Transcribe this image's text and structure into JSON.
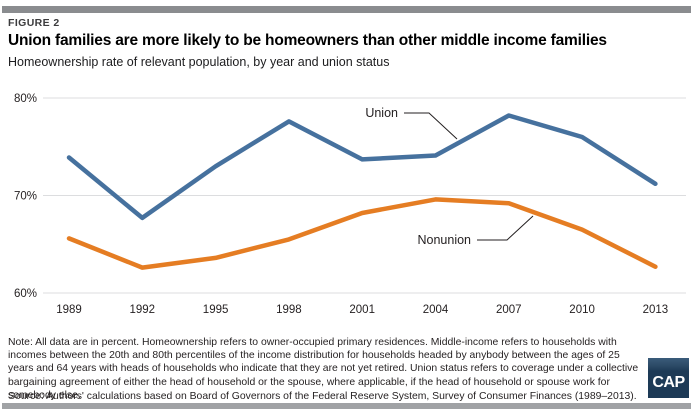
{
  "header": {
    "figure_label": "FIGURE 2",
    "title": "Union families are more likely to be homeowners than other middle income families",
    "subtitle": "Homeownership rate of relevant population, by year and union status"
  },
  "chart_data": {
    "type": "line",
    "categories": [
      "1989",
      "1992",
      "1995",
      "1998",
      "2001",
      "2004",
      "2007",
      "2010",
      "2013"
    ],
    "series": [
      {
        "name": "Union",
        "color": "#46719e",
        "values": [
          73.9,
          67.7,
          73.0,
          77.6,
          73.7,
          74.1,
          78.2,
          76.0,
          71.2
        ]
      },
      {
        "name": "Nonunion",
        "color": "#e57d23",
        "values": [
          65.6,
          62.6,
          63.6,
          65.5,
          68.2,
          69.6,
          69.2,
          66.5,
          62.7
        ]
      }
    ],
    "title": "Union families are more likely to be homeowners than other middle income families",
    "xlabel": "",
    "ylabel": "",
    "ylim": [
      60,
      80
    ],
    "yticks": [
      {
        "value": 80,
        "label": "80%"
      },
      {
        "value": 70,
        "label": "70%"
      },
      {
        "value": 60,
        "label": "60%"
      }
    ],
    "grid": "horizontal gridlines on, no vertical grid, no axis lines",
    "legend": "inline labels with leader lines pointing at each series",
    "annotations": [
      "Union",
      "Nonunion"
    ]
  },
  "footer": {
    "note": "Note: All data are in percent. Homeownership refers to owner-occupied primary residences. Middle-income refers to households with incomes between the 20th and 80th percentiles of the income distribution for households headed by anybody between the ages of 25 years and 64 years with heads of households who indicate that they are not yet retired. Union status refers to coverage under a collective bargaining agreement of either the head of household or the spouse, where applicable, if the head of household or spouse work for somebody else.",
    "source": "Source: Authors' calculations based on Board of Governors of the Federal Reserve System, Survey of Consumer Finances (1989–2013)."
  },
  "logo": {
    "text": "CAP",
    "background": "#1d3a56"
  },
  "colors": {
    "top_bar": "#8a8c8f",
    "bottom_bar": "#a0a2a5",
    "gridline": "#dcdddf",
    "axis_text": "#231f20",
    "union_line": "#46719e",
    "nonunion_line": "#e57d23",
    "leader_line": "#231f20"
  }
}
